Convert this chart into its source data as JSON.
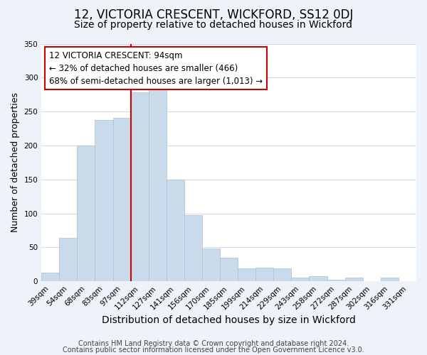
{
  "title": "12, VICTORIA CRESCENT, WICKFORD, SS12 0DJ",
  "subtitle": "Size of property relative to detached houses in Wickford",
  "xlabel": "Distribution of detached houses by size in Wickford",
  "ylabel": "Number of detached properties",
  "bar_labels": [
    "39sqm",
    "54sqm",
    "68sqm",
    "83sqm",
    "97sqm",
    "112sqm",
    "127sqm",
    "141sqm",
    "156sqm",
    "170sqm",
    "185sqm",
    "199sqm",
    "214sqm",
    "229sqm",
    "243sqm",
    "258sqm",
    "272sqm",
    "287sqm",
    "302sqm",
    "316sqm",
    "331sqm"
  ],
  "bar_values": [
    13,
    64,
    200,
    238,
    241,
    278,
    291,
    150,
    97,
    48,
    35,
    19,
    20,
    19,
    5,
    8,
    2,
    5,
    0,
    5,
    0
  ],
  "bar_color": "#c9daea",
  "bar_edge_color": "#a8c0d6",
  "vline_x": 4.5,
  "vline_color": "#cc0000",
  "annotation_line1": "12 VICTORIA CRESCENT: 94sqm",
  "annotation_line2": "← 32% of detached houses are smaller (466)",
  "annotation_line3": "68% of semi-detached houses are larger (1,013) →",
  "annotation_box_edgecolor": "#cc0000",
  "annotation_box_facecolor": "#ffffff",
  "ylim": [
    0,
    350
  ],
  "yticks": [
    0,
    50,
    100,
    150,
    200,
    250,
    300,
    350
  ],
  "footer1": "Contains HM Land Registry data © Crown copyright and database right 2024.",
  "footer2": "Contains public sector information licensed under the Open Government Licence v3.0.",
  "bg_color": "#eef3fa",
  "plot_bg_color": "#ffffff",
  "grid_color": "#d0d8e8",
  "title_fontsize": 12,
  "subtitle_fontsize": 10,
  "xlabel_fontsize": 10,
  "ylabel_fontsize": 9,
  "tick_fontsize": 7.5,
  "footer_fontsize": 7,
  "annotation_fontsize": 8.5
}
